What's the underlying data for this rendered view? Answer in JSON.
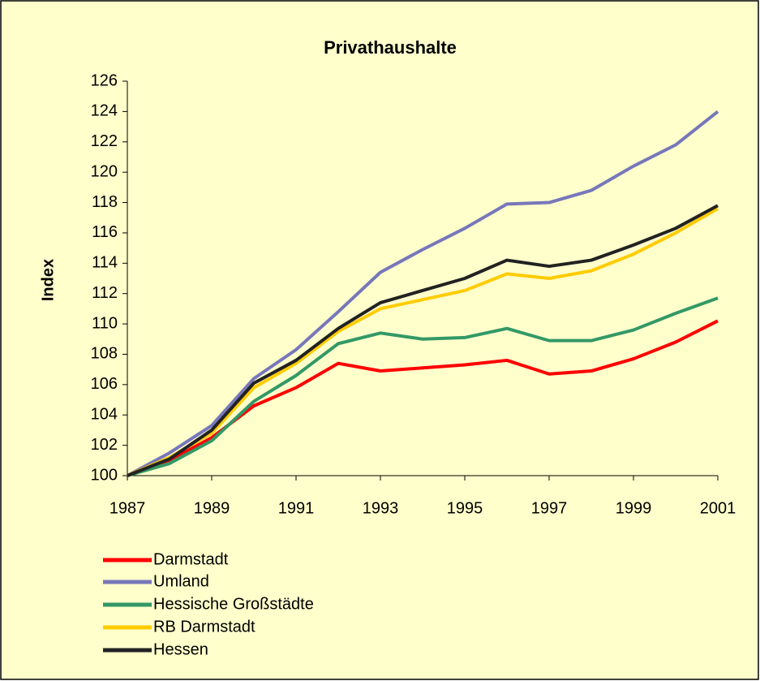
{
  "chart_data": {
    "type": "line",
    "title": "Privathaushalte",
    "y_label": "Index",
    "x": [
      1987,
      1988,
      1989,
      1990,
      1991,
      1992,
      1993,
      1994,
      1995,
      1996,
      1997,
      1998,
      1999,
      2000,
      2001
    ],
    "xlim": [
      1987,
      2001
    ],
    "xticks": [
      1987,
      1989,
      1991,
      1993,
      1995,
      1997,
      1999,
      2001
    ],
    "ylim": [
      100,
      126
    ],
    "yticks": [
      100,
      102,
      104,
      106,
      108,
      110,
      112,
      114,
      116,
      118,
      120,
      122,
      124,
      126
    ],
    "grid": false,
    "legend": "bottom",
    "series": [
      {
        "name": "Darmstadt",
        "color": "#ff0000",
        "values": [
          100,
          101.0,
          102.5,
          104.6,
          105.8,
          107.4,
          106.9,
          107.1,
          107.3,
          107.6,
          106.7,
          106.9,
          107.7,
          108.8,
          110.2
        ]
      },
      {
        "name": "Umland",
        "color": "#7777bb",
        "values": [
          100,
          101.5,
          103.3,
          106.4,
          108.3,
          110.8,
          113.4,
          114.9,
          116.3,
          117.9,
          118.0,
          118.8,
          120.4,
          121.8,
          124.0
        ]
      },
      {
        "name": "Hessische Großstädte",
        "color": "#339966",
        "values": [
          100,
          100.8,
          102.3,
          104.9,
          106.6,
          108.7,
          109.4,
          109.0,
          109.1,
          109.7,
          108.9,
          108.9,
          109.6,
          110.7,
          111.7
        ]
      },
      {
        "name": "RB Darmstadt",
        "color": "#ffcc00",
        "values": [
          100,
          101.2,
          102.8,
          105.8,
          107.4,
          109.5,
          111.0,
          111.6,
          112.2,
          113.3,
          113.0,
          113.5,
          114.6,
          116.0,
          117.6
        ]
      },
      {
        "name": "Hessen",
        "color": "#222222",
        "values": [
          100,
          101.1,
          103.0,
          106.1,
          107.6,
          109.7,
          111.4,
          112.2,
          113.0,
          114.2,
          113.8,
          114.2,
          115.2,
          116.3,
          117.8
        ]
      }
    ]
  }
}
